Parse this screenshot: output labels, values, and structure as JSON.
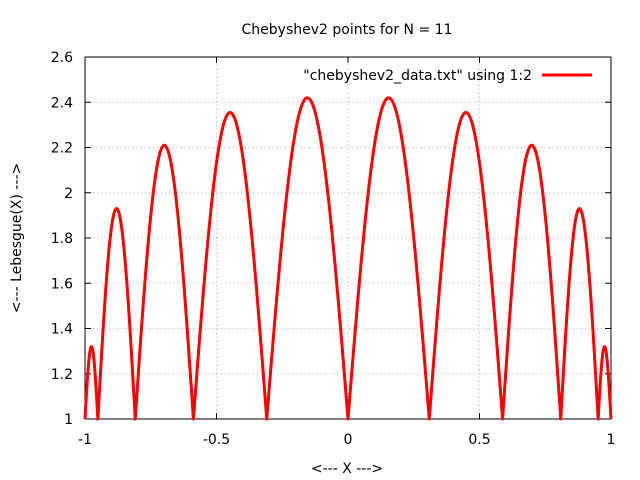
{
  "chart_data": {
    "type": "line",
    "title": "Chebyshev2 points for N = 11",
    "xlabel": "<--- X --->",
    "ylabel": "<--- Lebesgue(X) --->",
    "xlim": [
      -1,
      1
    ],
    "ylim": [
      1,
      2.6
    ],
    "xticks": [
      -1,
      -0.5,
      0,
      0.5,
      1
    ],
    "xtick_labels": [
      "-1",
      "-0.5",
      "0",
      "0.5",
      "1"
    ],
    "yticks": [
      1,
      1.2,
      1.4,
      1.6,
      1.8,
      2,
      2.2,
      2.4,
      2.6
    ],
    "ytick_labels": [
      "1",
      "1.2",
      "1.4",
      "1.6",
      "1.8",
      "2",
      "2.2",
      "2.4",
      "2.6"
    ],
    "grid": true,
    "legend_position": "top-right",
    "series": [
      {
        "name": "\"chebyshev2_data.txt\" using 1:2",
        "color": "#ff0000",
        "nodes": [
          -1,
          -0.9511,
          -0.809,
          -0.5878,
          -0.309,
          0,
          0.309,
          0.5878,
          0.809,
          0.9511,
          1
        ],
        "peaks": [
          {
            "x": -0.979,
            "y": 1.32
          },
          {
            "x": -0.888,
            "y": 1.93
          },
          {
            "x": -0.706,
            "y": 2.21
          },
          {
            "x": -0.453,
            "y": 2.355
          },
          {
            "x": -0.157,
            "y": 2.42
          },
          {
            "x": 0.157,
            "y": 2.42
          },
          {
            "x": 0.453,
            "y": 2.355
          },
          {
            "x": 0.706,
            "y": 2.21
          },
          {
            "x": 0.888,
            "y": 1.93
          },
          {
            "x": 0.979,
            "y": 1.32
          }
        ]
      }
    ]
  }
}
